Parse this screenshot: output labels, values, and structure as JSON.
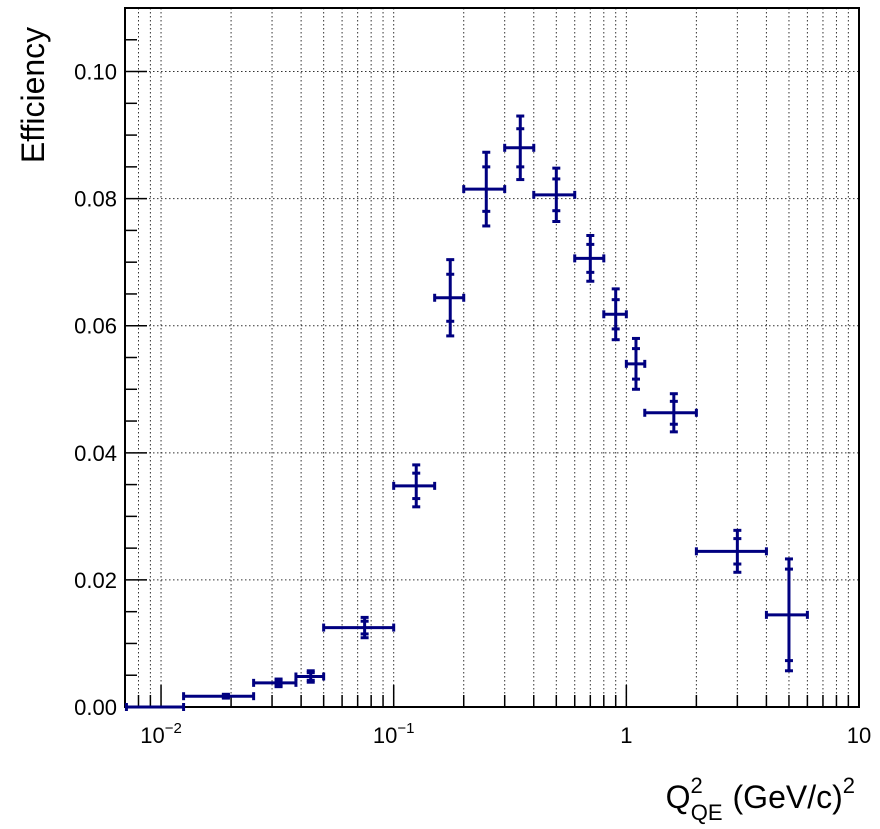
{
  "chart_data": {
    "type": "scatter",
    "ylabel": "Efficiency",
    "xlabel": {
      "base": "Q",
      "sup": "2",
      "sub": "QE",
      "unit": "(GeV/c)",
      "unit_sup": "2"
    },
    "xscale": "log",
    "xlim": [
      0.007,
      10
    ],
    "ylim": [
      0,
      0.11
    ],
    "grid": true,
    "x_ticks": [
      {
        "value": 0.01,
        "base": "10",
        "exp": "−2"
      },
      {
        "value": 0.1,
        "base": "10",
        "exp": "−1"
      },
      {
        "value": 1,
        "base": "1",
        "exp": ""
      },
      {
        "value": 10,
        "base": "10",
        "exp": ""
      }
    ],
    "y_ticks": [
      {
        "value": 0.0,
        "label": "0.00"
      },
      {
        "value": 0.02,
        "label": "0.02"
      },
      {
        "value": 0.04,
        "label": "0.04"
      },
      {
        "value": 0.06,
        "label": "0.06"
      },
      {
        "value": 0.08,
        "label": "0.08"
      },
      {
        "value": 0.1,
        "label": "0.10"
      }
    ],
    "color": "#000080",
    "points": [
      {
        "xlo": 0.0071,
        "x": 0.0095,
        "xhi": 0.0125,
        "y": 0.0,
        "ystat": 0.0,
        "ytot": 0.0
      },
      {
        "xlo": 0.0125,
        "x": 0.019,
        "xhi": 0.025,
        "y": 0.0017,
        "ystat": 0.0002,
        "ytot": 0.0003
      },
      {
        "xlo": 0.025,
        "x": 0.032,
        "xhi": 0.038,
        "y": 0.0038,
        "ystat": 0.0004,
        "ytot": 0.0006
      },
      {
        "xlo": 0.038,
        "x": 0.044,
        "xhi": 0.05,
        "y": 0.0048,
        "ystat": 0.0006,
        "ytot": 0.0009
      },
      {
        "xlo": 0.05,
        "x": 0.075,
        "xhi": 0.1,
        "y": 0.0125,
        "ystat": 0.001,
        "ytot": 0.0016
      },
      {
        "xlo": 0.1,
        "x": 0.125,
        "xhi": 0.15,
        "y": 0.0348,
        "ystat": 0.002,
        "ytot": 0.0033
      },
      {
        "xlo": 0.15,
        "x": 0.175,
        "xhi": 0.2,
        "y": 0.0644,
        "ystat": 0.0037,
        "ytot": 0.006
      },
      {
        "xlo": 0.2,
        "x": 0.25,
        "xhi": 0.3,
        "y": 0.0815,
        "ystat": 0.0035,
        "ytot": 0.0058
      },
      {
        "xlo": 0.3,
        "x": 0.35,
        "xhi": 0.4,
        "y": 0.088,
        "ystat": 0.003,
        "ytot": 0.005
      },
      {
        "xlo": 0.4,
        "x": 0.5,
        "xhi": 0.6,
        "y": 0.0806,
        "ystat": 0.0025,
        "ytot": 0.0042
      },
      {
        "xlo": 0.6,
        "x": 0.7,
        "xhi": 0.8,
        "y": 0.0706,
        "ystat": 0.0022,
        "ytot": 0.0036
      },
      {
        "xlo": 0.8,
        "x": 0.9,
        "xhi": 1.0,
        "y": 0.0618,
        "ystat": 0.0023,
        "ytot": 0.004
      },
      {
        "xlo": 1.0,
        "x": 1.1,
        "xhi": 1.2,
        "y": 0.054,
        "ystat": 0.0024,
        "ytot": 0.004
      },
      {
        "xlo": 1.2,
        "x": 1.6,
        "xhi": 2.0,
        "y": 0.0463,
        "ystat": 0.0018,
        "ytot": 0.003
      },
      {
        "xlo": 2.0,
        "x": 3.0,
        "xhi": 4.0,
        "y": 0.0245,
        "ystat": 0.002,
        "ytot": 0.0033
      },
      {
        "xlo": 4.0,
        "x": 5.0,
        "xhi": 6.0,
        "y": 0.0145,
        "ystat": 0.0072,
        "ytot": 0.0088
      }
    ]
  }
}
